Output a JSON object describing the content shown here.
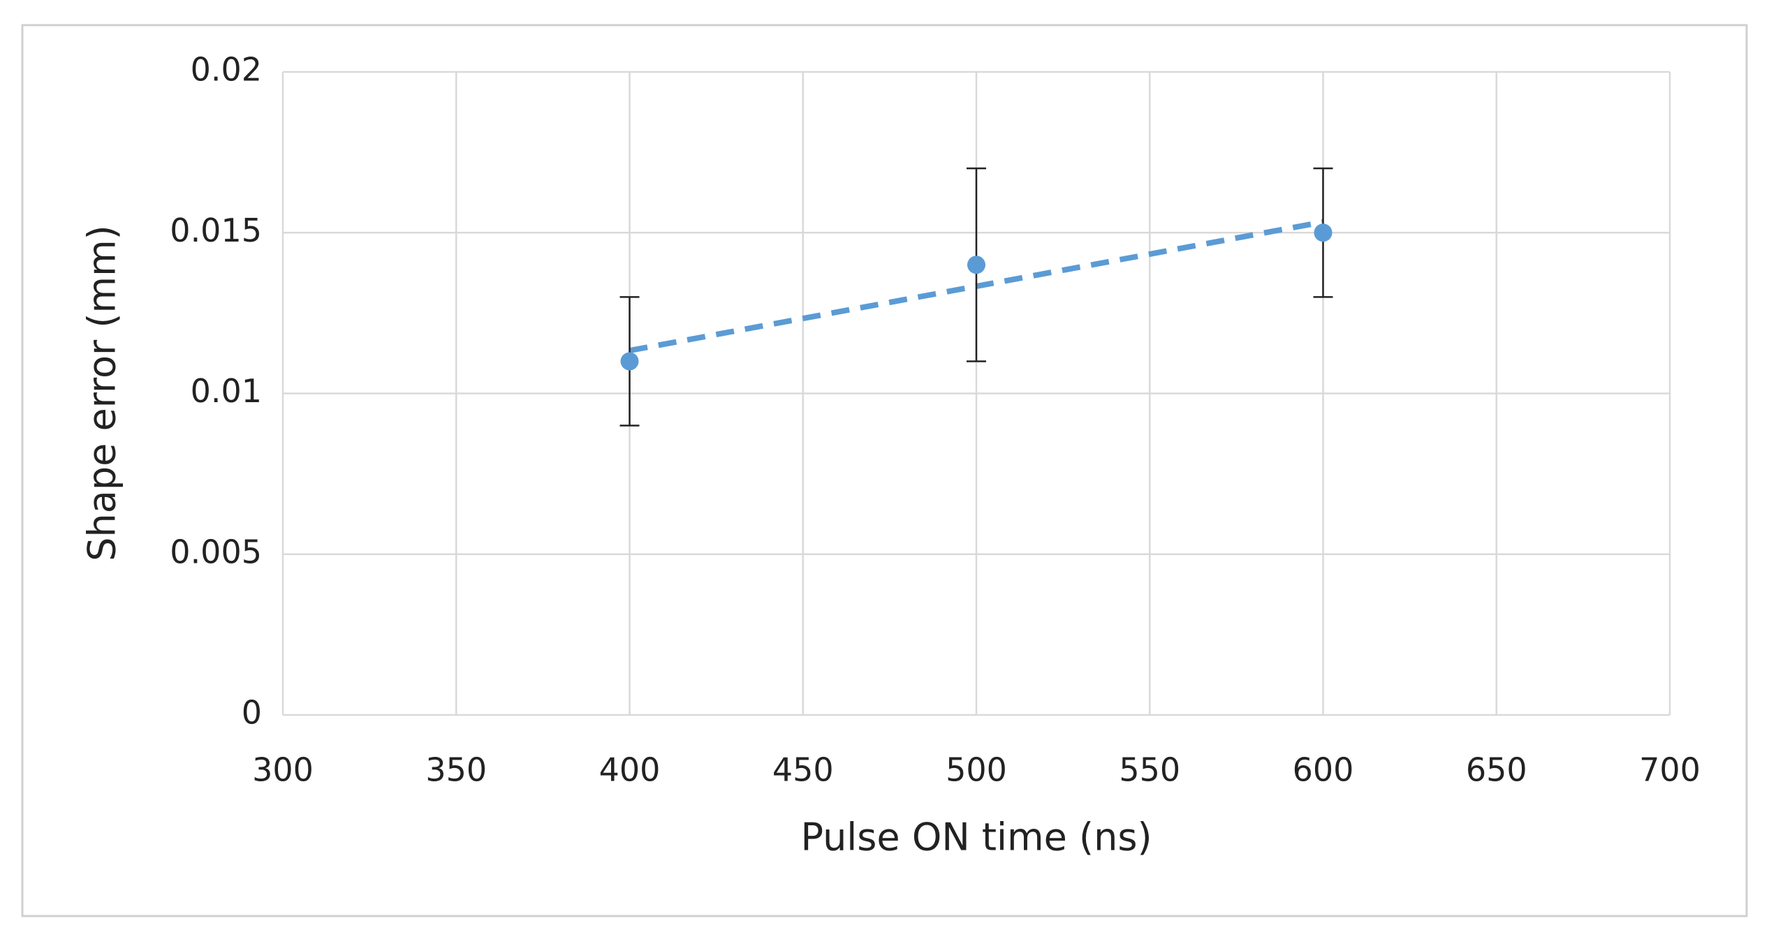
{
  "chart_data": {
    "type": "scatter",
    "x_label": "Pulse ON time (ns)",
    "y_label": "Shape error (mm)",
    "x": [
      400,
      500,
      600
    ],
    "values": [
      0.011,
      0.014,
      0.015
    ],
    "errors": [
      0.002,
      0.003,
      0.002
    ],
    "color": "#5b9bd5",
    "trendline": "linear",
    "xlim": [
      300,
      700
    ],
    "xticks": [
      300,
      350,
      400,
      450,
      500,
      550,
      600,
      650,
      700
    ],
    "ylim": [
      0,
      0.02
    ],
    "yticks": [
      0,
      0.005,
      0.01,
      0.015,
      0.02
    ],
    "grid": true
  }
}
